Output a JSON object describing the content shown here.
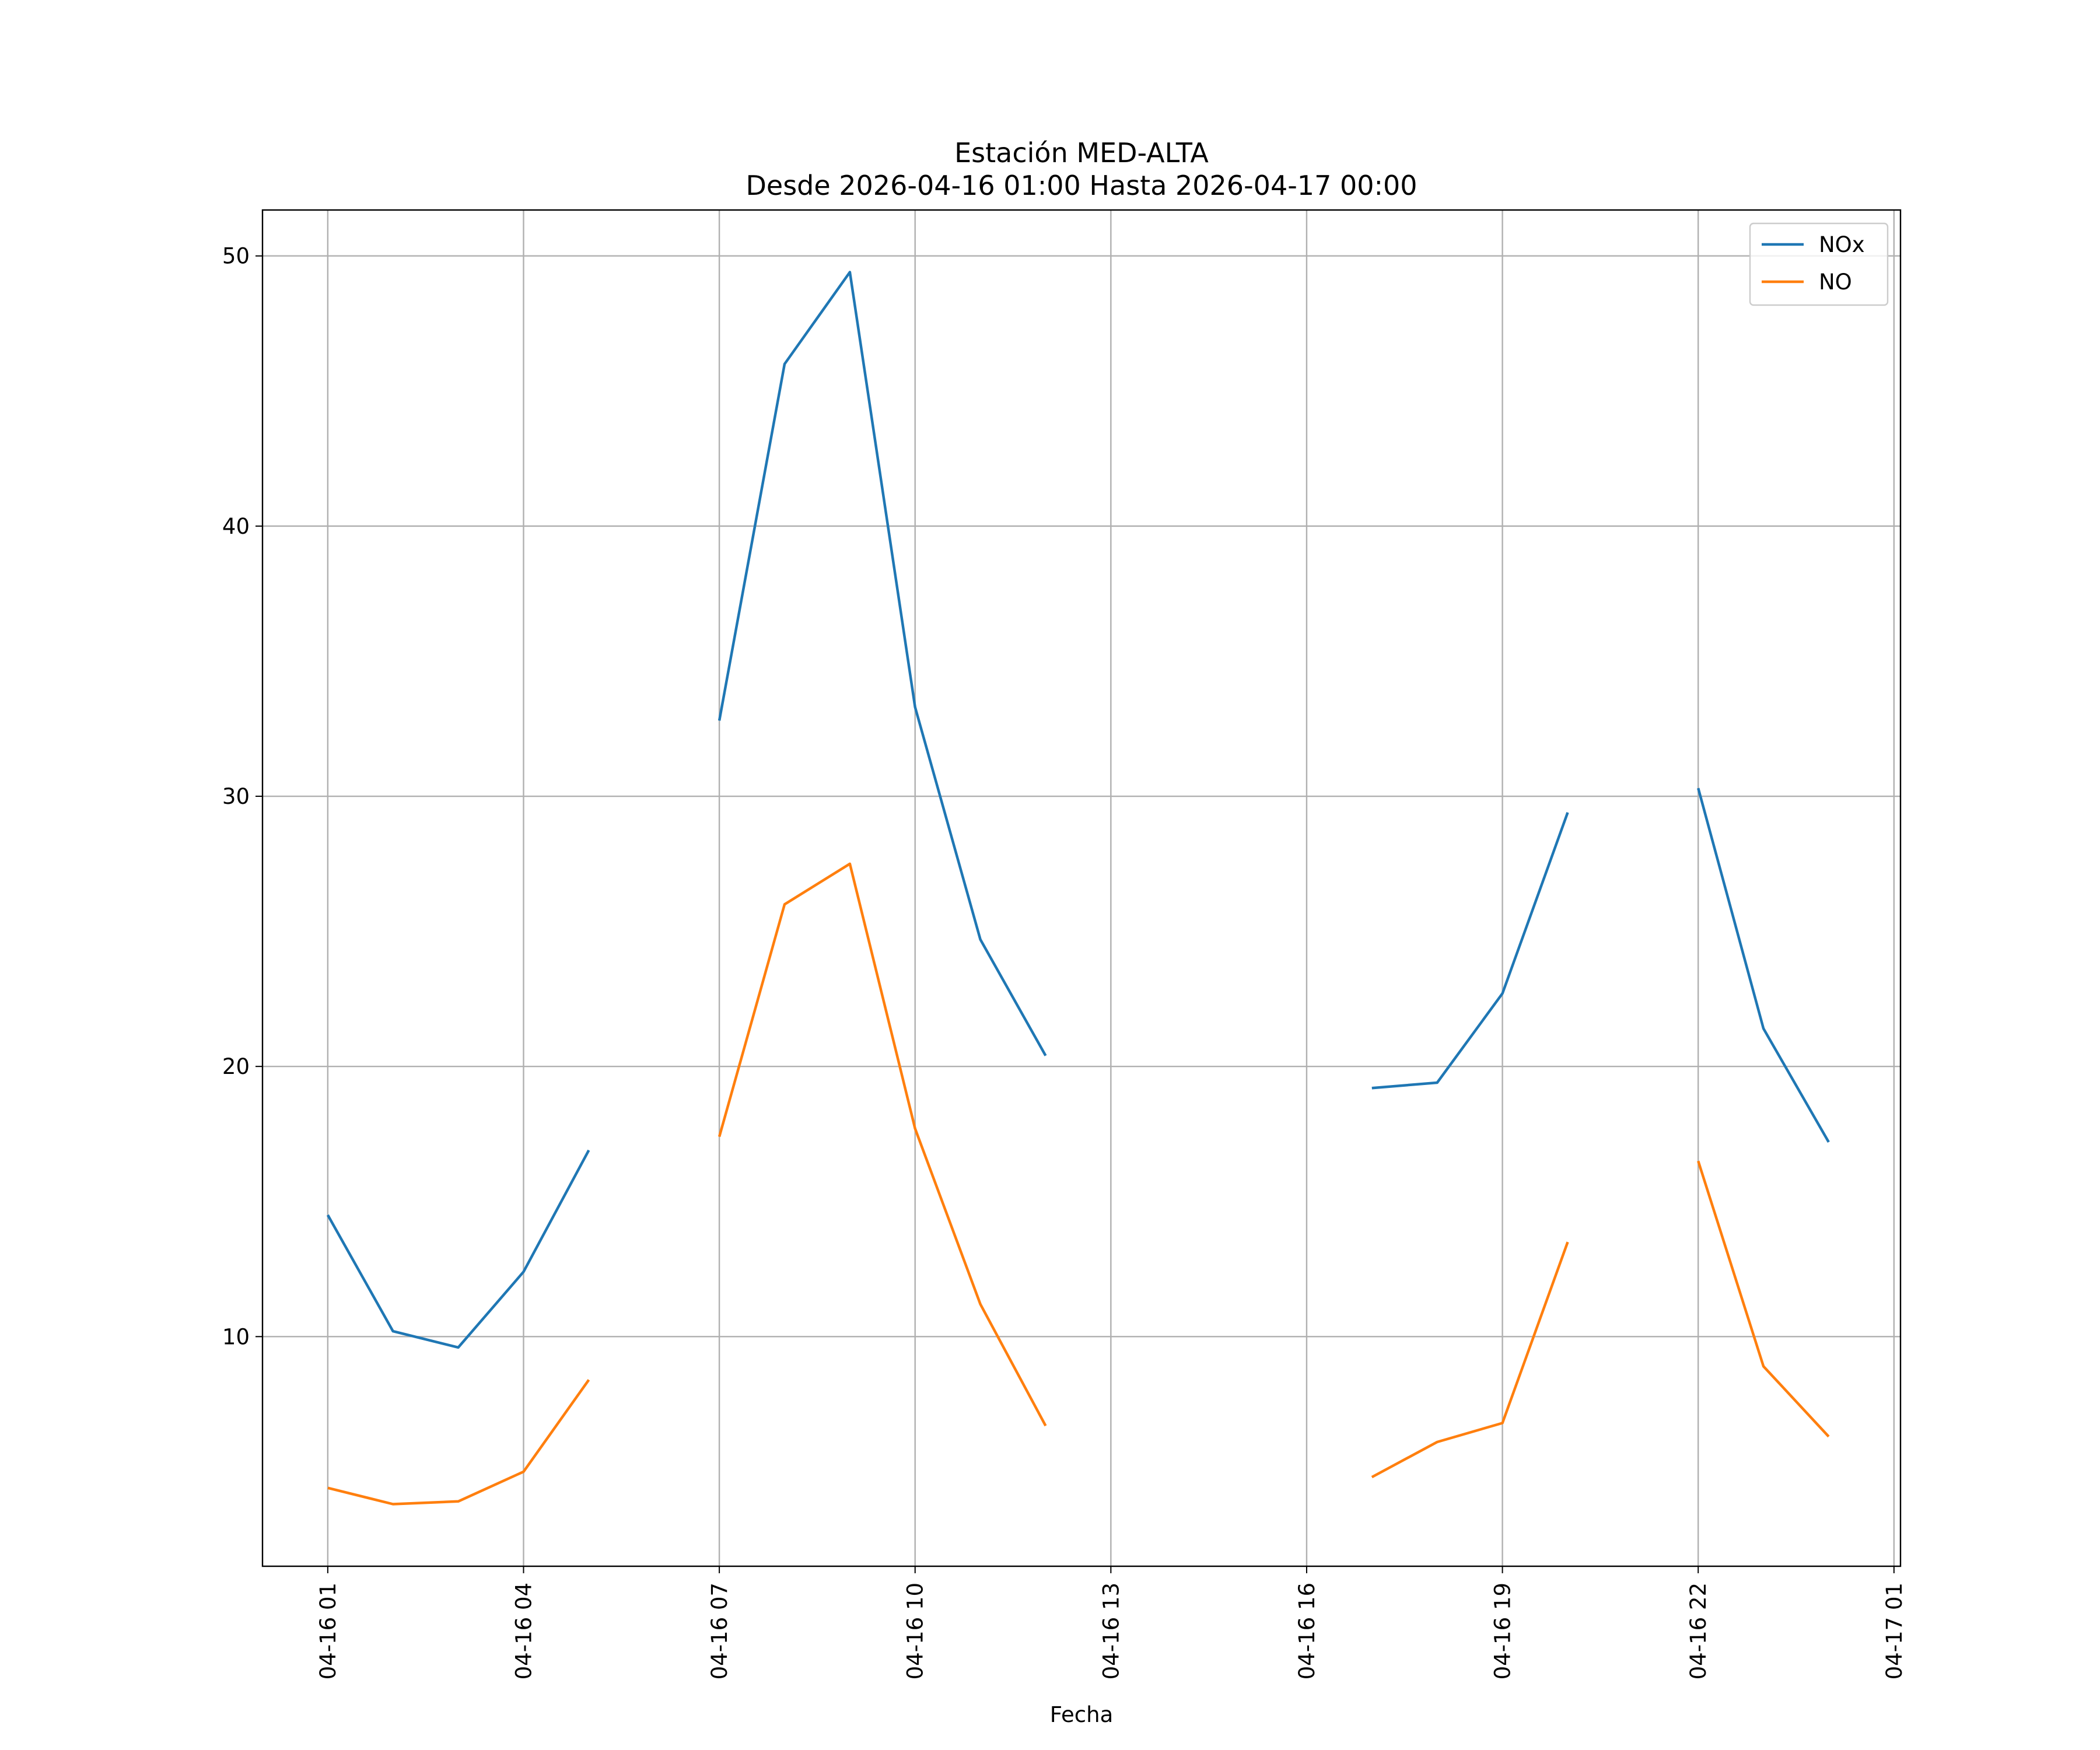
{
  "chart_data": {
    "type": "line",
    "title": "Estación MED-ALTA",
    "subtitle": "Desde 2026-04-16 01:00 Hasta 2026-04-17 00:00",
    "xlabel": "Fecha",
    "ylabel": "",
    "grid": true,
    "legend_position": "top-right",
    "x": [
      "2026-04-16 01:00",
      "2026-04-16 02:00",
      "2026-04-16 03:00",
      "2026-04-16 04:00",
      "2026-04-16 05:00",
      "2026-04-16 06:00",
      "2026-04-16 07:00",
      "2026-04-16 08:00",
      "2026-04-16 09:00",
      "2026-04-16 10:00",
      "2026-04-16 11:00",
      "2026-04-16 12:00",
      "2026-04-16 13:00",
      "2026-04-16 14:00",
      "2026-04-16 15:00",
      "2026-04-16 16:00",
      "2026-04-16 17:00",
      "2026-04-16 18:00",
      "2026-04-16 19:00",
      "2026-04-16 20:00",
      "2026-04-16 21:00",
      "2026-04-16 22:00",
      "2026-04-16 23:00",
      "2026-04-17 00:00"
    ],
    "x_tick_labels": [
      "04-16 01",
      "04-16 04",
      "04-16 07",
      "04-16 10",
      "04-16 13",
      "04-16 16",
      "04-16 19",
      "04-16 22",
      "04-17 01"
    ],
    "x_tick_values": [
      "2026-04-16 01:00",
      "2026-04-16 04:00",
      "2026-04-16 07:00",
      "2026-04-16 10:00",
      "2026-04-16 13:00",
      "2026-04-16 16:00",
      "2026-04-16 19:00",
      "2026-04-16 22:00",
      "2026-04-17 01:00"
    ],
    "xlim": [
      "2026-04-16 00:00",
      "2026-04-17 01:06"
    ],
    "y_ticks": [
      10,
      20,
      30,
      40,
      50
    ],
    "ylim": [
      1.5,
      51.7
    ],
    "series": [
      {
        "name": "NOx",
        "color": "#1f77b4",
        "values": [
          14.5,
          10.2,
          9.6,
          12.4,
          16.9,
          null,
          32.8,
          46.0,
          49.4,
          33.3,
          24.7,
          20.4,
          null,
          null,
          null,
          null,
          19.2,
          19.4,
          22.7,
          29.4,
          null,
          30.3,
          21.4,
          17.2
        ]
      },
      {
        "name": "NO",
        "color": "#ff7f0e",
        "values": [
          4.4,
          3.8,
          3.9,
          5.0,
          8.4,
          null,
          17.4,
          26.0,
          27.5,
          17.7,
          11.2,
          6.7,
          null,
          null,
          null,
          null,
          4.8,
          6.1,
          6.8,
          13.5,
          null,
          16.5,
          8.9,
          6.3
        ]
      }
    ]
  }
}
